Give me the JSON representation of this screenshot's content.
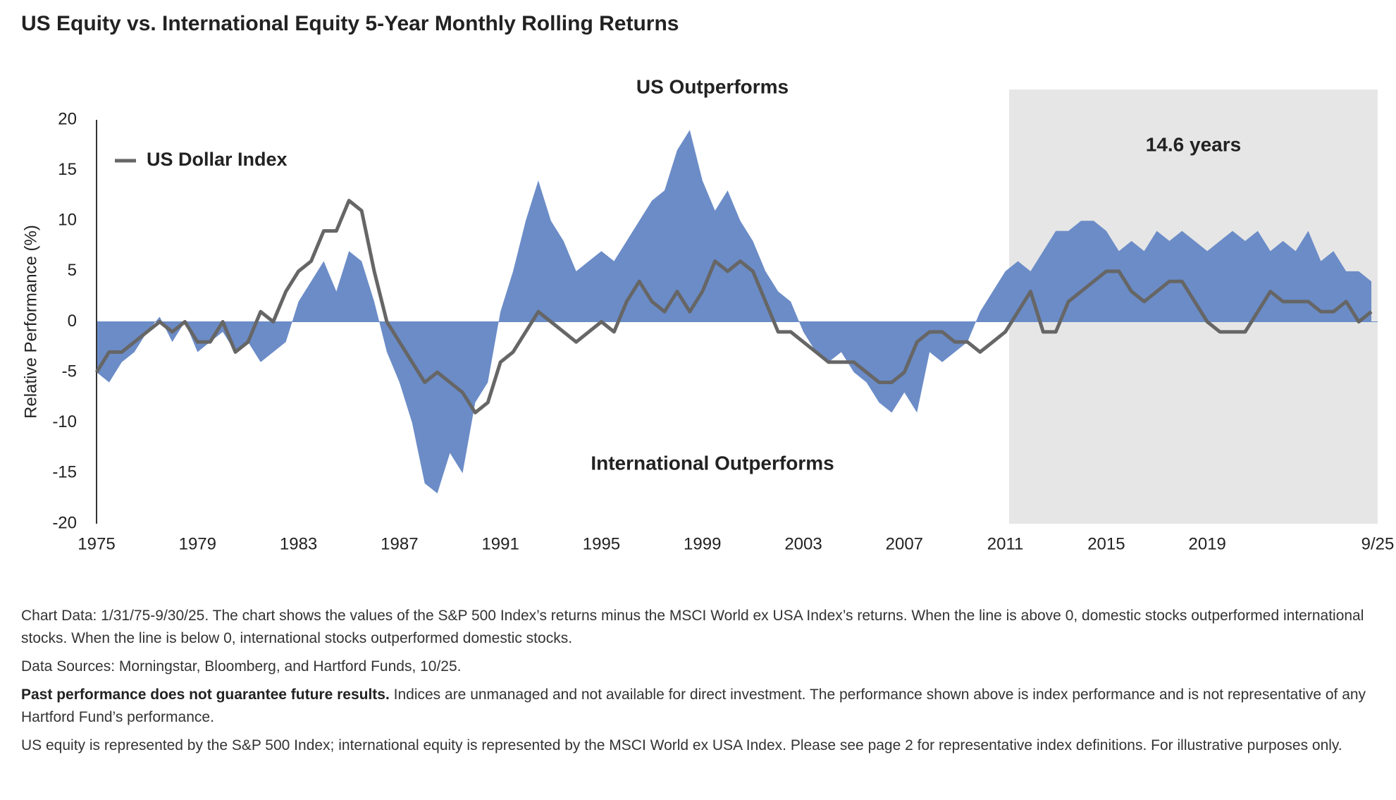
{
  "chart_data": {
    "type": "area-line",
    "title": "US Equity vs. International Equity 5-Year Monthly Rolling Returns",
    "y_label": "Relative Performance (%)",
    "annotation_top": "US Outperforms",
    "annotation_bottom": "International Outperforms",
    "highlight": {
      "label": "14.6 years",
      "range": [
        2011.15,
        2025.75
      ],
      "color": "#e6e6e6"
    },
    "xlim": [
      1975,
      2025.75
    ],
    "xticks": [
      1975,
      1979,
      1983,
      1987,
      1991,
      1995,
      1999,
      2003,
      2007,
      2011,
      2015,
      2019,
      {
        "value": 2025.75,
        "label": "9/25"
      }
    ],
    "ylim": [
      -20,
      20
    ],
    "yticks": [
      -20,
      -15,
      -10,
      -5,
      0,
      5,
      10,
      15,
      20
    ],
    "x": [
      1975,
      1975.5,
      1976,
      1976.5,
      1977,
      1977.5,
      1978,
      1978.5,
      1979,
      1979.5,
      1980,
      1980.5,
      1981,
      1981.5,
      1982,
      1982.5,
      1983,
      1983.5,
      1984,
      1984.5,
      1985,
      1985.5,
      1986,
      1986.5,
      1987,
      1987.5,
      1988,
      1988.5,
      1989,
      1989.5,
      1990,
      1990.5,
      1991,
      1991.5,
      1992,
      1992.5,
      1993,
      1993.5,
      1994,
      1994.5,
      1995,
      1995.5,
      1996,
      1996.5,
      1997,
      1997.5,
      1998,
      1998.5,
      1999,
      1999.5,
      2000,
      2000.5,
      2001,
      2001.5,
      2002,
      2002.5,
      2003,
      2003.5,
      2004,
      2004.5,
      2005,
      2005.5,
      2006,
      2006.5,
      2007,
      2007.5,
      2008,
      2008.5,
      2009,
      2009.5,
      2010,
      2010.5,
      2011,
      2011.5,
      2012,
      2012.5,
      2013,
      2013.5,
      2014,
      2014.5,
      2015,
      2015.5,
      2016,
      2016.5,
      2017,
      2017.5,
      2018,
      2018.5,
      2019,
      2019.5,
      2020,
      2020.5,
      2021,
      2021.5,
      2022,
      2022.5,
      2023,
      2023.5,
      2024,
      2024.5,
      2025,
      2025.5
    ],
    "series": [
      {
        "kind": "area",
        "color": "#6b8cc7",
        "values": [
          -5,
          -6,
          -4,
          -3,
          -1,
          0.5,
          -2,
          0,
          -3,
          -2,
          -1,
          -3,
          -2,
          -4,
          -3,
          -2,
          2,
          4,
          6,
          3,
          7,
          6,
          2,
          -3,
          -6,
          -10,
          -16,
          -17,
          -13,
          -15,
          -8,
          -6,
          1,
          5,
          10,
          14,
          10,
          8,
          5,
          6,
          7,
          6,
          8,
          10,
          12,
          13,
          17,
          19,
          14,
          11,
          13,
          10,
          8,
          5,
          3,
          2,
          -1,
          -3,
          -4,
          -3,
          -5,
          -6,
          -8,
          -9,
          -7,
          -9,
          -3,
          -4,
          -3,
          -2,
          1,
          3,
          5,
          6,
          5,
          7,
          9,
          9,
          10,
          10,
          9,
          7,
          8,
          7,
          9,
          8,
          9,
          8,
          7,
          8,
          9,
          8,
          9,
          7,
          8,
          7,
          9,
          6,
          7,
          5,
          5,
          4
        ]
      },
      {
        "kind": "line",
        "name": "US Dollar Index",
        "color": "#666666",
        "values": [
          -5,
          -3,
          -3,
          -2,
          -1,
          0,
          -1,
          0,
          -2,
          -2,
          0,
          -3,
          -2,
          1,
          0,
          3,
          5,
          6,
          9,
          9,
          12,
          11,
          5,
          0,
          -2,
          -4,
          -6,
          -5,
          -6,
          -7,
          -9,
          -8,
          -4,
          -3,
          -1,
          1,
          0,
          -1,
          -2,
          -1,
          0,
          -1,
          2,
          4,
          2,
          1,
          3,
          1,
          3,
          6,
          5,
          6,
          5,
          2,
          -1,
          -1,
          -2,
          -3,
          -4,
          -4,
          -4,
          -5,
          -6,
          -6,
          -5,
          -2,
          -1,
          -1,
          -2,
          -2,
          -3,
          -2,
          -1,
          1,
          3,
          -1,
          -1,
          2,
          3,
          4,
          5,
          5,
          3,
          2,
          3,
          4,
          4,
          2,
          0,
          -1,
          -1,
          -1,
          1,
          3,
          2,
          2,
          2,
          1,
          1,
          2,
          0,
          1
        ]
      }
    ]
  },
  "notes": [
    "Chart Data: 1/31/75-9/30/25. The chart shows the values of the S&P 500 Index’s returns minus the MSCI World ex USA Index’s returns. When the line is above 0, domestic stocks outperformed international stocks. When the line is below 0, international stocks outperformed domestic stocks.",
    "Data Sources: Morningstar, Bloomberg, and Hartford Funds, 10/25.",
    {
      "bold": "Past performance does not guarantee future results.",
      "text": "Indices are unmanaged and not available for direct investment. The performance shown above is index performance and is not representative of any Hartford Fund’s performance."
    },
    "US equity is represented by the S&P 500 Index; international equity is represented by the MSCI World ex USA Index. Please see page 2 for representative index definitions. For illustrative purposes only."
  ]
}
